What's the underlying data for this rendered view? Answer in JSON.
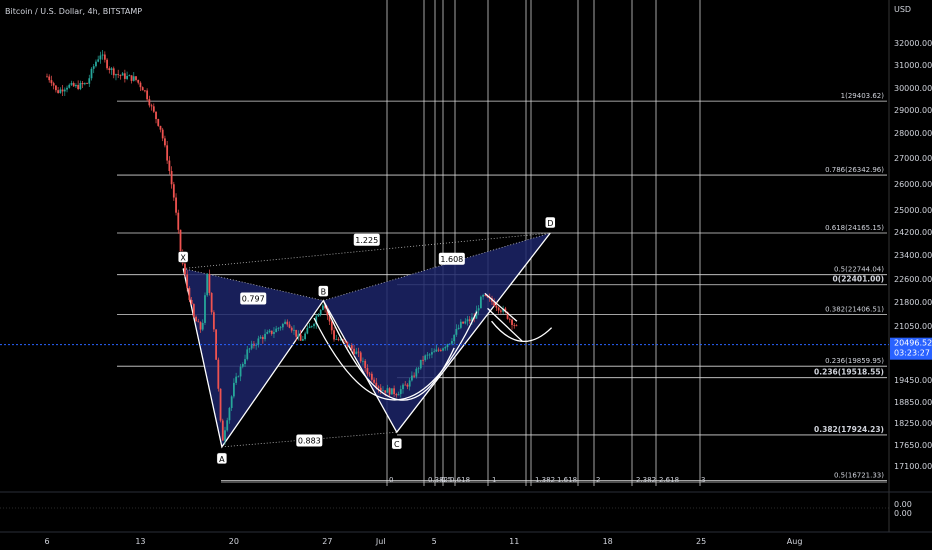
{
  "header": {
    "title": "Bitcoin / U.S. Dollar, 4h, BITSTAMP",
    "currency": "USD"
  },
  "chart_data": {
    "type": "candlestick",
    "symbol": "Bitcoin / U.S. Dollar",
    "interval": "4h",
    "exchange": "BITSTAMP",
    "y_axis": {
      "unit": "USD",
      "ticks": [
        "32000.00",
        "31000.00",
        "30000.00",
        "29000.00",
        "28000.00",
        "27000.00",
        "26000.00",
        "25000.00",
        "24200.00",
        "23400.00",
        "22600.00",
        "21800.00",
        "21050.00",
        "20496.52",
        "19450.00",
        "18850.00",
        "18250.00",
        "17650.00",
        "17100.00"
      ],
      "ylim": [
        16600,
        33500
      ]
    },
    "x_axis": {
      "ticks": [
        "6",
        "13",
        "20",
        "27",
        "Jul",
        "5",
        "11",
        "18",
        "25",
        "Aug"
      ]
    },
    "last_price": {
      "value": 20496.52,
      "label": "20496.52",
      "countdown": "03:23:27",
      "color": "#2962ff"
    },
    "colors": {
      "up": "#26a69a",
      "down": "#ef5350",
      "pattern_fill": "#1c2569",
      "text": "#d1d4dc",
      "grid": "#ffffff"
    },
    "fib_levels_right": [
      {
        "label": "1(29403.62)",
        "price": 29403.62,
        "bold": false
      },
      {
        "label": "0.786(26342.96)",
        "price": 26342.96,
        "bold": false
      },
      {
        "label": "0.618(24165.15)",
        "price": 24165.15,
        "bold": false
      },
      {
        "label": "0.5(22744.04)",
        "price": 22744.04,
        "bold": false
      },
      {
        "label": "0(22401.00)",
        "price": 22401.0,
        "bold": true
      },
      {
        "label": "0.382(21406.51)",
        "price": 21406.51,
        "bold": false
      },
      {
        "label": "0.236(19859.95)",
        "price": 19859.95,
        "bold": false
      },
      {
        "label": "0.236(19518.55)",
        "price": 19518.55,
        "bold": true
      },
      {
        "label": "0.382(17924.23)",
        "price": 17924.23,
        "bold": true
      },
      {
        "label": "0.5(16721.33)",
        "price": 16721.33,
        "bold": false
      }
    ],
    "time_fib_labels": [
      "0",
      "0.382",
      "0.5",
      "0.618",
      "1",
      "1.382",
      "1.618",
      "2",
      "2.382",
      "2.618",
      "3"
    ],
    "harmonic_points": [
      {
        "label": "X",
        "price": 22950
      },
      {
        "label": "A",
        "price": 17600
      },
      {
        "label": "B",
        "price": 21850
      },
      {
        "label": "C",
        "price": 18000
      },
      {
        "label": "D",
        "price": 24165
      }
    ],
    "ratio_labels": [
      "0.797",
      "1.225",
      "1.608",
      "0.883"
    ],
    "indicator": {
      "ticks": [
        "0.00",
        "0.00"
      ]
    }
  }
}
